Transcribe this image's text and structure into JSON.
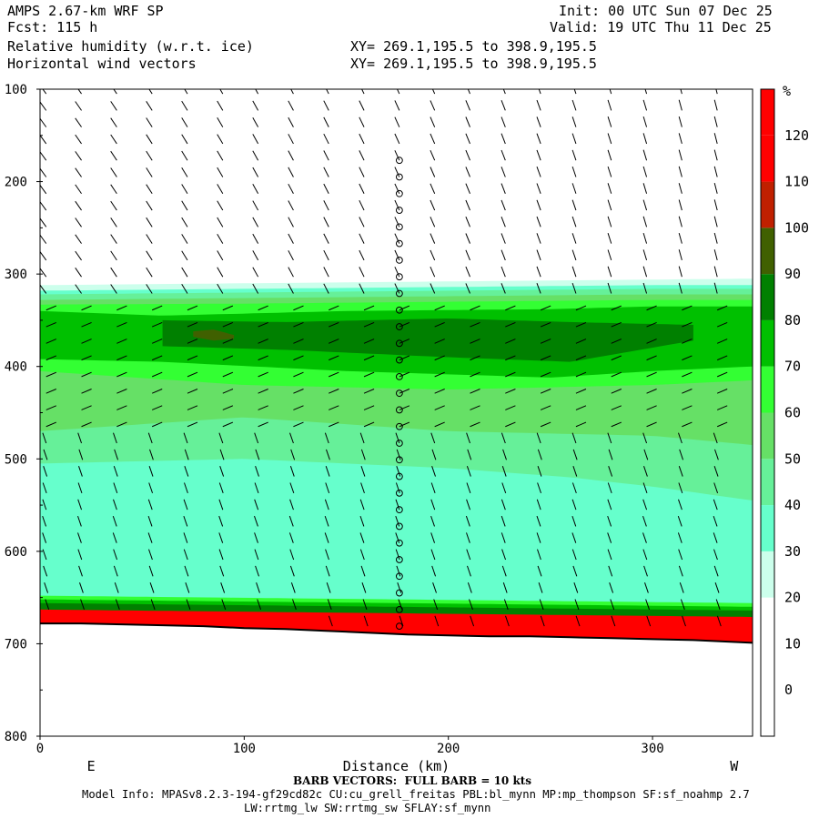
{
  "header": {
    "model": "AMPS 2.67-km WRF SP",
    "fcst": "Fcst: 115 h",
    "init": "Init: 00 UTC Sun 07 Dec 25",
    "valid": "Valid: 19 UTC Thu 11 Dec 25",
    "field1": "Relative humidity (w.r.t. ice)",
    "field2": "Horizontal wind vectors",
    "xy1": "XY= 269.1,195.5 to 398.9,195.5",
    "xy2": "XY= 269.1,195.5 to 398.9,195.5"
  },
  "footer": {
    "barb_note": "BARB VECTORS:  FULL BARB = 10 kts",
    "model_info": "Model Info: MPASv8.2.3-194-gf29cd82c CU:cu_grell_freitas PBL:bl_mynn MP:mp_thompson SF:sf_noahmp 2.7",
    "model_info2": "LW:rrtmg_lw SW:rrtmg_sw SFLAY:sf_mynn"
  },
  "chart_data": {
    "type": "heatmap",
    "title": "Relative humidity (w.r.t. ice)",
    "xlabel": "Distance (km)",
    "ylabel": "",
    "x_ticks": [
      0,
      100,
      200,
      300
    ],
    "y_ticks": [
      100,
      200,
      300,
      400,
      500,
      600,
      700,
      800
    ],
    "xlim": [
      0,
      349
    ],
    "ylim": [
      800,
      100
    ],
    "y_inverted": true,
    "x_end_labels": {
      "left": "E",
      "right": "W"
    },
    "colorbar": {
      "unit": "%",
      "ticks": [
        0,
        10,
        20,
        30,
        40,
        50,
        60,
        70,
        80,
        90,
        100,
        110,
        120
      ],
      "colors": [
        "#ffffff",
        "#ffffff",
        "#ffffff",
        "#ccffec",
        "#66ffcc",
        "#66f099",
        "#66e066",
        "#33ff33",
        "#00c000",
        "#008000",
        "#406000",
        "#c02000",
        "#ff0000"
      ]
    },
    "surface_pressure": [
      [
        0,
        678
      ],
      [
        20,
        678
      ],
      [
        40,
        679
      ],
      [
        60,
        680
      ],
      [
        80,
        681
      ],
      [
        100,
        683
      ],
      [
        120,
        684
      ],
      [
        140,
        686
      ],
      [
        160,
        688
      ],
      [
        180,
        690
      ],
      [
        200,
        691
      ],
      [
        220,
        692
      ],
      [
        240,
        692
      ],
      [
        260,
        693
      ],
      [
        280,
        694
      ],
      [
        300,
        695
      ],
      [
        320,
        696
      ],
      [
        349,
        699
      ]
    ],
    "rh_layers": [
      {
        "rh": 30,
        "top": [
          [
            0,
            312
          ],
          [
            100,
            310
          ],
          [
            200,
            308
          ],
          [
            300,
            306
          ],
          [
            349,
            305
          ]
        ],
        "bottom": "surface"
      },
      {
        "rh": 40,
        "top": [
          [
            0,
            318
          ],
          [
            100,
            316
          ],
          [
            200,
            314
          ],
          [
            300,
            312
          ],
          [
            349,
            312
          ]
        ],
        "bottom": "surface"
      },
      {
        "rh": 50,
        "top": [
          [
            0,
            322
          ],
          [
            100,
            320
          ],
          [
            200,
            318
          ],
          [
            300,
            316
          ],
          [
            349,
            316
          ]
        ],
        "bottom": [
          [
            0,
            505
          ],
          [
            100,
            500
          ],
          [
            200,
            510
          ],
          [
            260,
            520
          ],
          [
            300,
            530
          ],
          [
            349,
            545
          ]
        ]
      },
      {
        "rh": 60,
        "top": [
          [
            0,
            328
          ],
          [
            100,
            326
          ],
          [
            200,
            324
          ],
          [
            300,
            322
          ],
          [
            349,
            322
          ]
        ],
        "bottom": [
          [
            0,
            470
          ],
          [
            100,
            455
          ],
          [
            200,
            470
          ],
          [
            300,
            475
          ],
          [
            349,
            485
          ]
        ]
      },
      {
        "rh": 70,
        "top": [
          [
            0,
            333
          ],
          [
            100,
            332
          ],
          [
            200,
            330
          ],
          [
            300,
            328
          ],
          [
            349,
            328
          ]
        ],
        "bottom": [
          [
            0,
            405
          ],
          [
            100,
            420
          ],
          [
            200,
            425
          ],
          [
            300,
            420
          ],
          [
            349,
            415
          ]
        ]
      },
      {
        "rh": 80,
        "top": [
          [
            0,
            340
          ],
          [
            60,
            345
          ],
          [
            150,
            340
          ],
          [
            250,
            338
          ],
          [
            300,
            335
          ],
          [
            349,
            335
          ]
        ],
        "bottom": [
          [
            0,
            392
          ],
          [
            60,
            395
          ],
          [
            150,
            405
          ],
          [
            250,
            412
          ],
          [
            300,
            405
          ],
          [
            349,
            400
          ]
        ]
      },
      {
        "rh": 90,
        "top": [
          [
            60,
            350
          ],
          [
            120,
            352
          ],
          [
            200,
            348
          ],
          [
            260,
            352
          ],
          [
            320,
            355
          ]
        ],
        "bottom": [
          [
            60,
            378
          ],
          [
            120,
            382
          ],
          [
            200,
            390
          ],
          [
            260,
            395
          ],
          [
            320,
            372
          ]
        ]
      },
      {
        "rh": 100,
        "top": [
          [
            75,
            362
          ],
          [
            85,
            360
          ],
          [
            95,
            366
          ]
        ],
        "bottom": [
          [
            75,
            368
          ],
          [
            85,
            372
          ],
          [
            95,
            370
          ]
        ]
      }
    ],
    "low_level_layers": [
      {
        "rh": 70,
        "top": 648
      },
      {
        "rh": 80,
        "top": 652
      },
      {
        "rh": 90,
        "top": 656
      },
      {
        "rh": 120,
        "top": 663
      }
    ]
  }
}
